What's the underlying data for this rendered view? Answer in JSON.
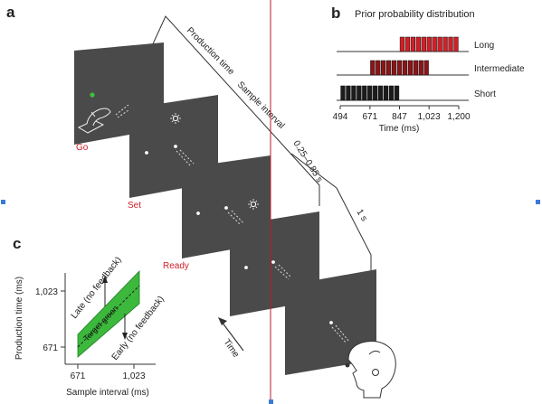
{
  "figure": {
    "panel_a": {
      "letter": "a"
    },
    "panel_b": {
      "letter": "b",
      "title": "Prior probability distribution"
    },
    "panel_c": {
      "letter": "c"
    },
    "timeline": {
      "production_time": "Production time",
      "sample_interval": "Sample interval",
      "range": "0.25–0.85 s",
      "one_second": "1 s",
      "time_arrow": "Time"
    },
    "screens": {
      "go": "Go",
      "set": "Set",
      "ready": "Ready"
    }
  },
  "chart_data": [
    {
      "type": "bar",
      "title": "Prior probability distribution",
      "xlabel": "Time (ms)",
      "x_ticks": [
        "494",
        "671",
        "847",
        "1,023",
        "1,200"
      ],
      "xlim": [
        494,
        1200
      ],
      "series": [
        {
          "name": "Long",
          "color": "#d21f26",
          "range": [
            847,
            1200
          ],
          "bins": 11
        },
        {
          "name": "Intermediate",
          "color": "#8b1518",
          "range": [
            671,
            1023
          ],
          "bins": 11
        },
        {
          "name": "Short",
          "color": "#1c1c1c",
          "range": [
            494,
            847
          ],
          "bins": 11
        }
      ]
    },
    {
      "type": "area",
      "xlabel": "Sample interval (ms)",
      "ylabel": "Production time (ms)",
      "x_ticks": [
        "671",
        "1,023"
      ],
      "y_ticks": [
        "671",
        "1,023"
      ],
      "band_color": "#3cb93c",
      "band_label": "Target green",
      "annotations": [
        "Late (no feedback)",
        "Early (no feedback)"
      ]
    }
  ],
  "colors": {
    "screen": "#4a4a4a",
    "accent_red": "#d0202a",
    "divider": "#b0202a",
    "handle": "#3a7bd5"
  }
}
